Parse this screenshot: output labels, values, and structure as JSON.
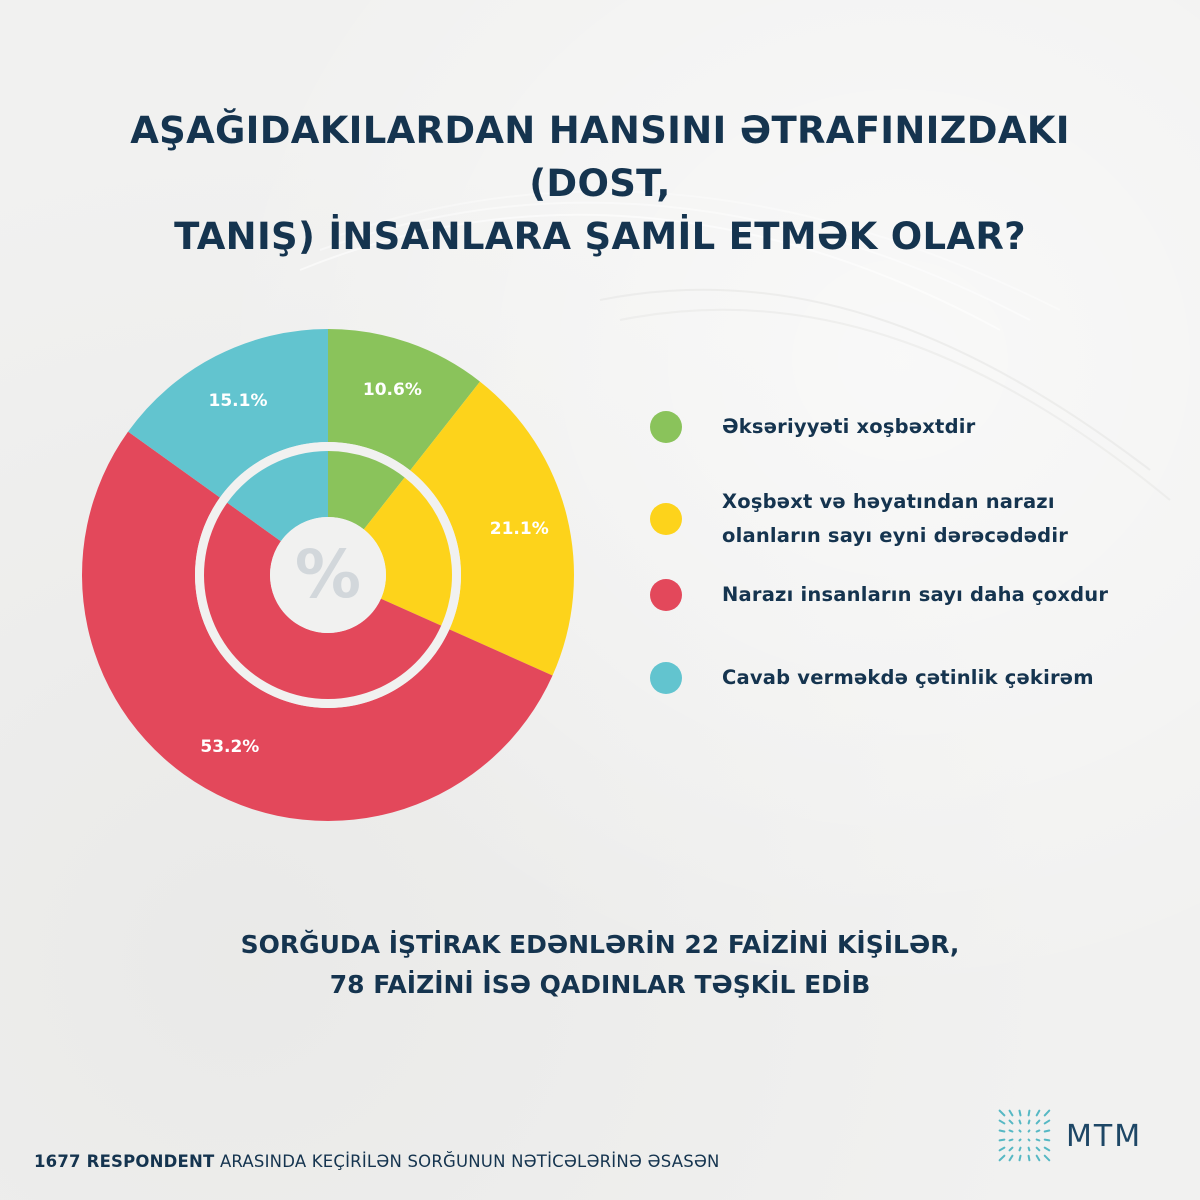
{
  "title": {
    "line1": "AŞAĞIDAKILARDAN HANSINI ƏTRAFINIZDAKI (DOST,",
    "line2": "TANIŞ) İNSANLARA ŞAMİL ETMƏK OLAR?"
  },
  "chart_data": {
    "type": "pie",
    "variant": "donut",
    "center_symbol": "%",
    "categories": [
      "Əksəriyyəti xoşbəxtdir",
      "Xoşbəxt və həyatından narazı olanların sayı eyni dərəcədədir",
      "Narazı insanların sayı daha çoxdur",
      "Cavab verməkdə çətinlik çəkirəm"
    ],
    "values": [
      10.6,
      21.1,
      53.2,
      15.1
    ],
    "value_labels": [
      "10.6%",
      "21.1%",
      "53.2%",
      "15.1%"
    ],
    "colors": [
      "#8ac35b",
      "#fdd31b",
      "#e3485b",
      "#62c4cf"
    ],
    "legend_position": "right"
  },
  "legend": {
    "items": [
      {
        "line1": "Əksəriyyəti xoşbəxtdir",
        "line2": ""
      },
      {
        "line1": "Xoşbəxt və həyatından narazı",
        "line2": "olanların sayı eyni dərəcədədir"
      },
      {
        "line1": "Narazı insanların sayı daha çoxdur",
        "line2": ""
      },
      {
        "line1": "Cavab verməkdə çətinlik çəkirəm",
        "line2": ""
      }
    ]
  },
  "footnote": {
    "line1": "SORĞUDA İŞTİRAK EDƏNLƏRİN 22 FAİZİNİ KİŞİLƏR,",
    "line2": "78 FAİZİNİ İSƏ QADINLAR TƏŞKİL EDİB"
  },
  "bottom": {
    "bold": "1677 RESPONDENT",
    "rest": " ARASINDA KEÇİRİLƏN SORĞUNUN NƏTİCƏLƏRİNƏ ƏSASƏN"
  },
  "logo": {
    "text": "MTM",
    "icon": "mtm-starburst-icon"
  }
}
